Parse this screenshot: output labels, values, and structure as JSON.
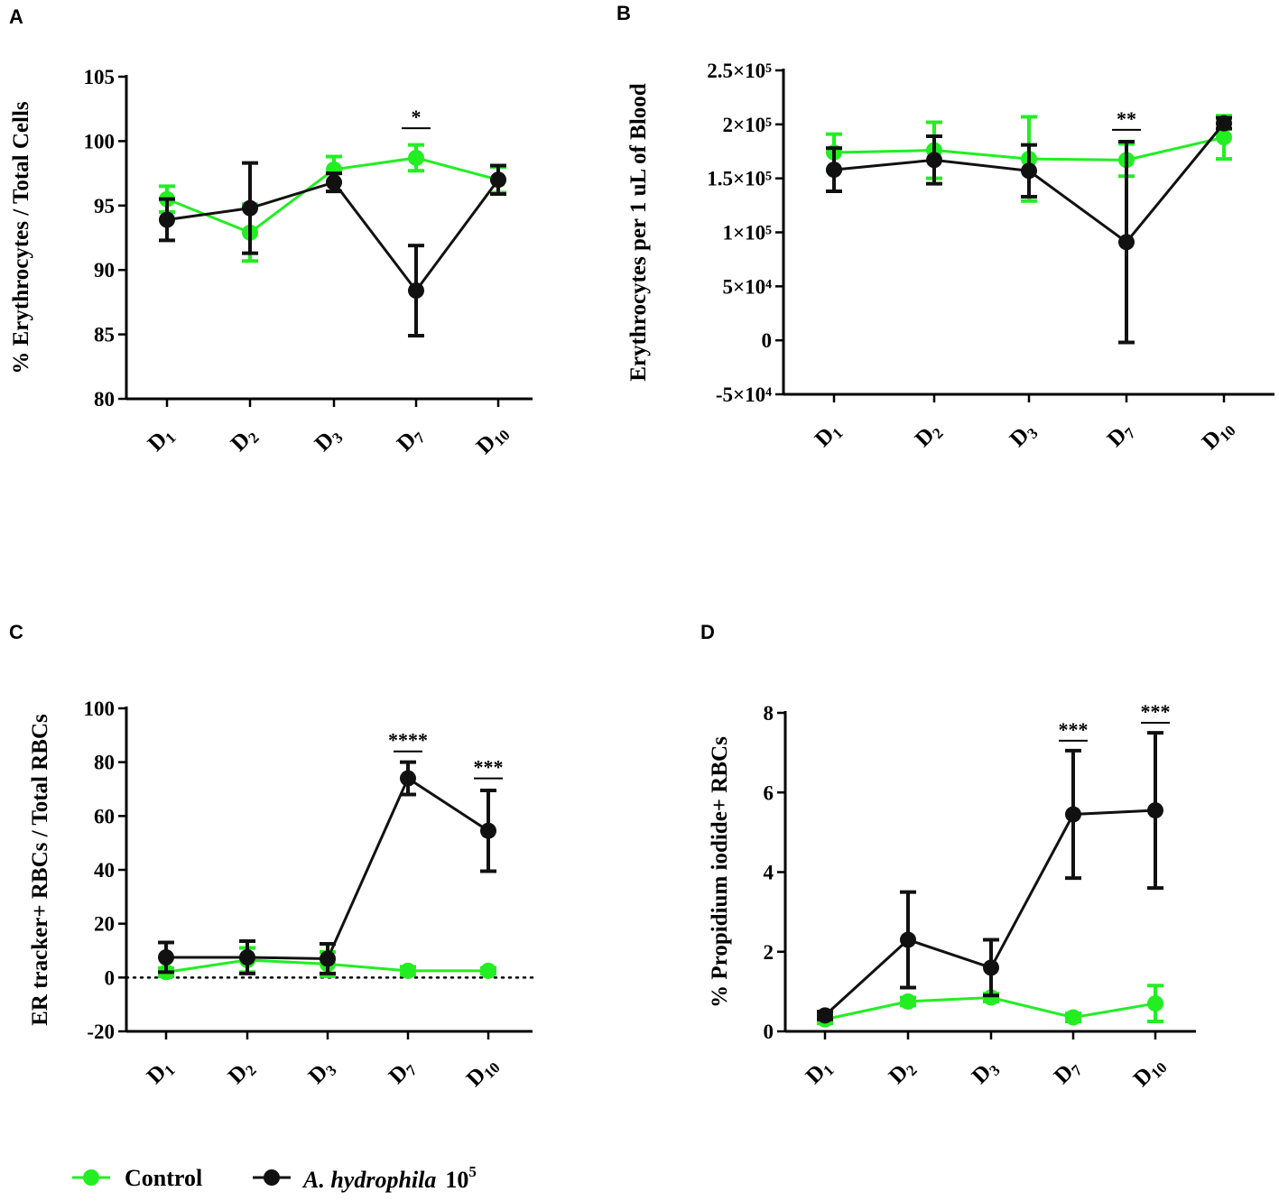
{
  "colors": {
    "control": "#22ee22",
    "infected": "#111111"
  },
  "legend": {
    "control_label": "Control",
    "infected_label_italic": "A. hydrophila",
    "infected_label_base": "10",
    "infected_label_exp": "5"
  },
  "chart_data": [
    {
      "panel": "A",
      "type": "line",
      "ylabel": "% Erythrocytes / Total Cells",
      "ylim": [
        80,
        105
      ],
      "yticks": [
        80,
        85,
        90,
        95,
        100,
        105
      ],
      "ytick_labels": [
        "80",
        "85",
        "90",
        "95",
        "100",
        "105"
      ],
      "categories": [
        {
          "base": "D",
          "sub": "1"
        },
        {
          "base": "D",
          "sub": "2"
        },
        {
          "base": "D",
          "sub": "3"
        },
        {
          "base": "D",
          "sub": "7"
        },
        {
          "base": "D",
          "sub": "10"
        }
      ],
      "series": [
        {
          "name": "Control",
          "values": [
            95.5,
            92.9,
            97.8,
            98.7,
            97.0
          ],
          "err": [
            1.0,
            2.2,
            1.0,
            1.0,
            1.0
          ]
        },
        {
          "name": "A. hydrophila 10^5",
          "values": [
            93.9,
            94.8,
            96.8,
            88.4,
            97.0
          ],
          "err": [
            1.6,
            3.5,
            0.7,
            3.5,
            1.1
          ]
        }
      ],
      "significance": [
        {
          "index": 3,
          "label": "*",
          "y": 101
        }
      ],
      "reference_line": null
    },
    {
      "panel": "B",
      "type": "line",
      "ylabel": "Erythrocytes per 1 uL of Blood",
      "ylim": [
        -50000,
        250000
      ],
      "yticks": [
        -50000,
        0,
        50000,
        100000,
        150000,
        200000,
        250000
      ],
      "ytick_labels": [
        "-5×10⁴",
        "0",
        "5×10⁴",
        "1×10⁵",
        "1.5×10⁵",
        "2×10⁵",
        "2.5×10⁵"
      ],
      "categories": [
        {
          "base": "D",
          "sub": "1"
        },
        {
          "base": "D",
          "sub": "2"
        },
        {
          "base": "D",
          "sub": "3"
        },
        {
          "base": "D",
          "sub": "7"
        },
        {
          "base": "D",
          "sub": "10"
        }
      ],
      "series": [
        {
          "name": "Control",
          "values": [
            174000,
            176000,
            168000,
            167000,
            188000
          ],
          "err": [
            17000,
            26000,
            39000,
            15000,
            20000
          ]
        },
        {
          "name": "A. hydrophila 10^5",
          "values": [
            158000,
            167000,
            157000,
            91000,
            201000
          ],
          "err": [
            20000,
            22000,
            24000,
            93000,
            5000
          ]
        }
      ],
      "significance": [
        {
          "index": 3,
          "label": "**",
          "y": 195000
        }
      ],
      "reference_line": null
    },
    {
      "panel": "C",
      "type": "line",
      "ylabel": "ER tracker+ RBCs / Total RBCs",
      "ylim": [
        -20,
        100
      ],
      "yticks": [
        -20,
        0,
        20,
        40,
        60,
        80,
        100
      ],
      "ytick_labels": [
        "-20",
        "0",
        "20",
        "40",
        "60",
        "80",
        "100"
      ],
      "categories": [
        {
          "base": "D",
          "sub": "1"
        },
        {
          "base": "D",
          "sub": "2"
        },
        {
          "base": "D",
          "sub": "3"
        },
        {
          "base": "D",
          "sub": "7"
        },
        {
          "base": "D",
          "sub": "10"
        }
      ],
      "series": [
        {
          "name": "Control",
          "values": [
            2.0,
            6.5,
            5.0,
            2.5,
            2.5
          ],
          "err": [
            1.5,
            4.5,
            4.5,
            1.5,
            1.0
          ]
        },
        {
          "name": "A. hydrophila 10^5",
          "values": [
            7.5,
            7.5,
            7.0,
            74.0,
            54.5
          ],
          "err": [
            5.5,
            6.0,
            5.5,
            6.0,
            15.0
          ]
        }
      ],
      "significance": [
        {
          "index": 3,
          "label": "****",
          "y": 84
        },
        {
          "index": 4,
          "label": "***",
          "y": 74
        }
      ],
      "reference_line": {
        "y": 0,
        "style": "dotted"
      }
    },
    {
      "panel": "D",
      "type": "line",
      "ylabel": "% Propidium iodide+ RBCs",
      "ylim": [
        0,
        8
      ],
      "yticks": [
        0,
        2,
        4,
        6,
        8
      ],
      "ytick_labels": [
        "0",
        "2",
        "4",
        "6",
        "8"
      ],
      "categories": [
        {
          "base": "D",
          "sub": "1"
        },
        {
          "base": "D",
          "sub": "2"
        },
        {
          "base": "D",
          "sub": "3"
        },
        {
          "base": "D",
          "sub": "7"
        },
        {
          "base": "D",
          "sub": "10"
        }
      ],
      "series": [
        {
          "name": "Control",
          "values": [
            0.3,
            0.75,
            0.85,
            0.35,
            0.7
          ],
          "err": [
            0.1,
            0.1,
            0.1,
            0.1,
            0.45
          ]
        },
        {
          "name": "A. hydrophila 10^5",
          "values": [
            0.4,
            2.3,
            1.6,
            5.45,
            5.55
          ],
          "err": [
            0.1,
            1.2,
            0.7,
            1.6,
            1.95
          ]
        }
      ],
      "significance": [
        {
          "index": 3,
          "label": "***",
          "y": 7.3
        },
        {
          "index": 4,
          "label": "***",
          "y": 7.75
        }
      ],
      "reference_line": null
    }
  ]
}
